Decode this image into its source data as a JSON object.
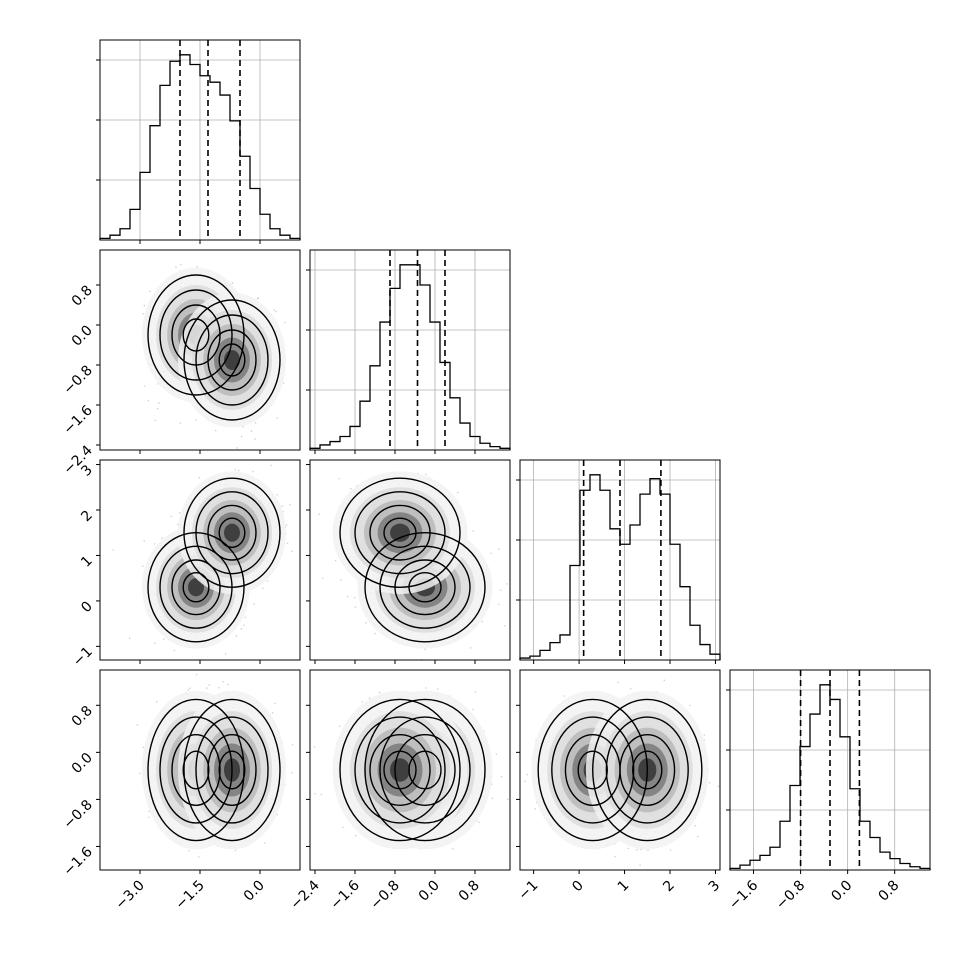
{
  "chart_data": {
    "type": "corner",
    "grid": true,
    "variables": [
      {
        "range": [
          -4.0,
          1.0
        ],
        "ticks": [
          -3.0,
          -1.5,
          0.0
        ],
        "tick_labels": [
          "−3.0",
          "−1.5",
          "0.0"
        ],
        "quantiles": [
          -2.0,
          -1.3,
          -0.5
        ],
        "mixture_means": [
          -1.6,
          -0.7
        ]
      },
      {
        "range": [
          -2.5,
          1.5
        ],
        "ticks": [
          -2.4,
          -1.6,
          -0.8,
          0.0,
          0.8
        ],
        "tick_labels": [
          "−2.4",
          "−1.6",
          "−0.8",
          "0.0",
          "0.8"
        ],
        "quantiles": [
          -0.9,
          -0.35,
          0.2
        ],
        "mixture_means": [
          -0.2,
          -0.7
        ]
      },
      {
        "range": [
          -1.3,
          3.1
        ],
        "ticks": [
          -1,
          0,
          1,
          2,
          3
        ],
        "tick_labels": [
          "−1",
          "0",
          "1",
          "2",
          "3"
        ],
        "quantiles": [
          0.1,
          0.9,
          1.8
        ],
        "mixture_means": [
          0.3,
          1.5
        ]
      },
      {
        "range": [
          -2.0,
          1.4
        ],
        "ticks": [
          -1.6,
          -0.8,
          0.0,
          0.8
        ],
        "tick_labels": [
          "−1.6",
          "−0.8",
          "0.0",
          "0.8"
        ],
        "quantiles": [
          -0.8,
          -0.3,
          0.2
        ],
        "mixture_means": [
          -0.3,
          -0.3
        ]
      }
    ],
    "histograms": [
      {
        "name": "var1",
        "counts": [
          1,
          3,
          7,
          19,
          42,
          71,
          96,
          111,
          115,
          109,
          102,
          98,
          90,
          74,
          52,
          32,
          16,
          7,
          3,
          1
        ]
      },
      {
        "name": "var2",
        "counts": [
          1,
          3,
          5,
          8,
          14,
          29,
          50,
          76,
          96,
          110,
          110,
          98,
          76,
          52,
          31,
          16,
          8,
          4,
          2,
          1
        ]
      },
      {
        "name": "var3",
        "counts": [
          1,
          2,
          5,
          9,
          13,
          49,
          88,
          96,
          88,
          68,
          60,
          70,
          86,
          94,
          86,
          60,
          38,
          18,
          8,
          3
        ]
      },
      {
        "name": "var4",
        "counts": [
          1,
          3,
          6,
          9,
          14,
          30,
          52,
          76,
          96,
          114,
          105,
          82,
          50,
          30,
          20,
          11,
          7,
          4,
          2,
          1
        ]
      }
    ]
  }
}
